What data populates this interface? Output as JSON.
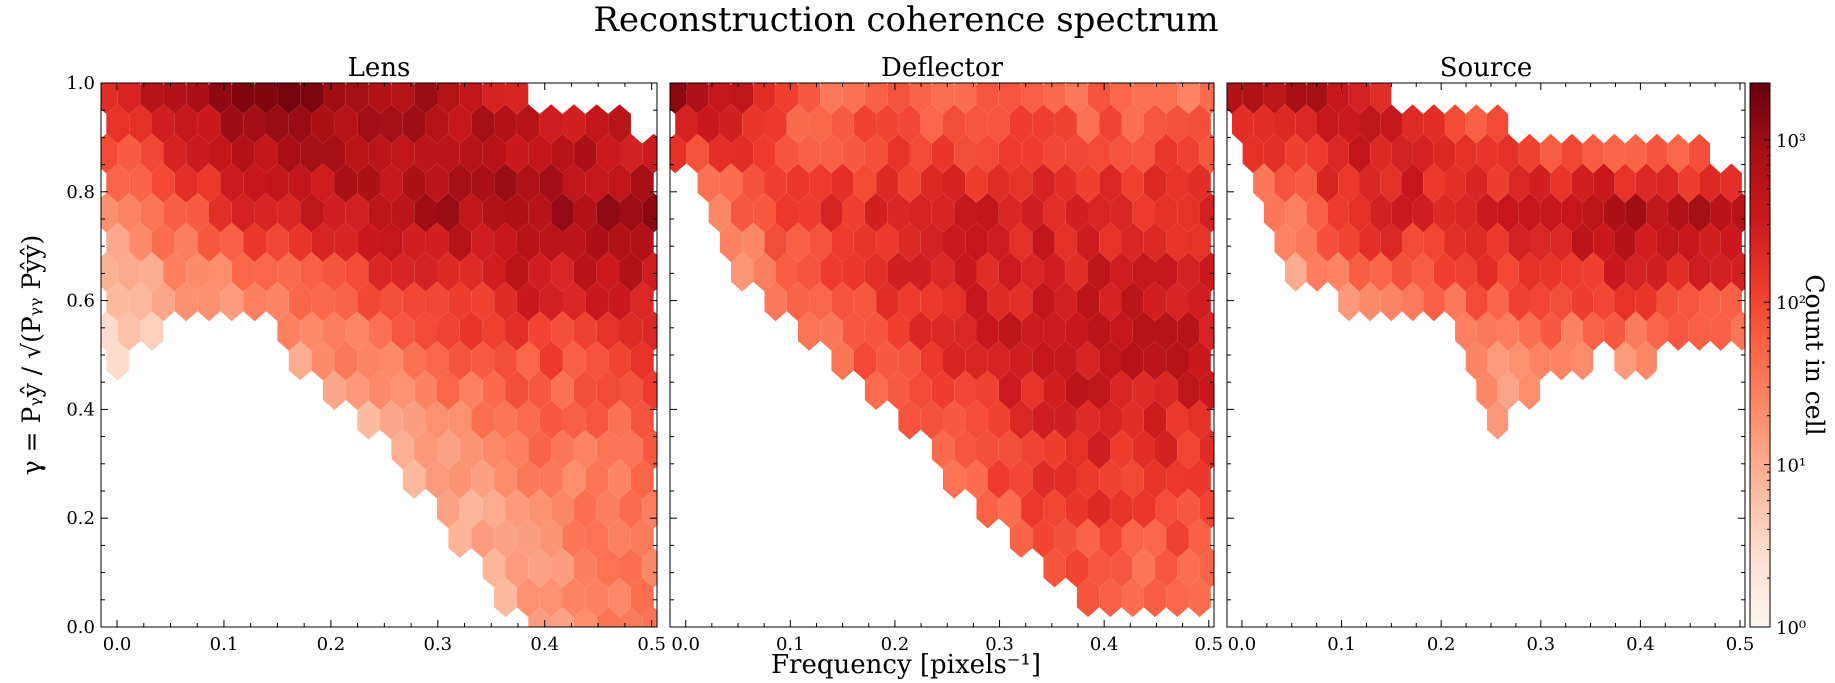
{
  "title": "Reconstruction coherence spectrum",
  "xlabel": "Frequency [pixels⁻¹]",
  "ylabel": "γ = Pᵧŷ / √(Pᵧᵧ Pŷŷ)",
  "colorbar_label": "Count in cell",
  "colorbar_ticks": [
    {
      "value": 1,
      "label": "10⁰"
    },
    {
      "value": 10,
      "label": "10¹"
    },
    {
      "value": 100,
      "label": "10²"
    },
    {
      "value": 1000,
      "label": "10³"
    }
  ],
  "colormap": [
    "#fff5f0",
    "#fee0d2",
    "#fcbba1",
    "#fc9272",
    "#fb6a4a",
    "#ef3b2c",
    "#cb181d",
    "#a50f15",
    "#67000d"
  ],
  "chart_data": [
    {
      "type": "heatmap",
      "title": "Lens",
      "scale": "log",
      "xlim": [
        -0.015,
        0.505
      ],
      "ylim": [
        0,
        1
      ],
      "xticks": [
        0.0,
        0.1,
        0.2,
        0.3,
        0.4,
        0.5
      ],
      "yticks": [
        0.0,
        0.2,
        0.4,
        0.6,
        0.8,
        1.0
      ],
      "bounds": [
        [
          0.0,
          0.48,
          1.0
        ],
        [
          0.05,
          0.58,
          1.0
        ],
        [
          0.1,
          0.62,
          1.0
        ],
        [
          0.15,
          0.56,
          1.0
        ],
        [
          0.2,
          0.44,
          1.0
        ],
        [
          0.25,
          0.34,
          1.0
        ],
        [
          0.3,
          0.24,
          1.0
        ],
        [
          0.35,
          0.08,
          0.98
        ],
        [
          0.4,
          0.0,
          0.96
        ],
        [
          0.45,
          0.0,
          0.93
        ],
        [
          0.5,
          0.0,
          0.88
        ]
      ],
      "count_grid": {
        "x": [
          0.0,
          0.125,
          0.25,
          0.375,
          0.5
        ],
        "y": [
          0.0,
          0.25,
          0.5,
          0.75,
          1.0
        ],
        "log10_counts": [
          [
            0.1,
            0.2,
            0.4,
            1.0,
            1.5
          ],
          [
            0.0,
            0.2,
            0.7,
            1.3,
            1.6
          ],
          [
            0.4,
            0.9,
            1.5,
            1.9,
            2.1
          ],
          [
            1.3,
            2.2,
            2.7,
            2.9,
            2.9
          ],
          [
            2.4,
            3.3,
            3.0,
            2.5,
            2.3
          ]
        ]
      }
    },
    {
      "type": "heatmap",
      "title": "Deflector",
      "scale": "log",
      "xlim": [
        -0.015,
        0.505
      ],
      "ylim": [
        0,
        1
      ],
      "xticks": [
        0.0,
        0.1,
        0.2,
        0.3,
        0.4,
        0.5
      ],
      "yticks": [
        0.0,
        0.2,
        0.4,
        0.6,
        0.8,
        1.0
      ],
      "bounds": [
        [
          0.0,
          0.84,
          1.0
        ],
        [
          0.05,
          0.68,
          1.0
        ],
        [
          0.1,
          0.56,
          1.0
        ],
        [
          0.15,
          0.48,
          1.0
        ],
        [
          0.2,
          0.4,
          1.0
        ],
        [
          0.25,
          0.3,
          1.0
        ],
        [
          0.3,
          0.2,
          1.0
        ],
        [
          0.35,
          0.1,
          1.0
        ],
        [
          0.4,
          0.06,
          1.0
        ],
        [
          0.45,
          0.04,
          1.0
        ],
        [
          0.5,
          0.04,
          1.0
        ]
      ],
      "count_grid": {
        "x": [
          0.0,
          0.125,
          0.25,
          0.375,
          0.5
        ],
        "y": [
          0.0,
          0.25,
          0.5,
          0.75,
          1.0
        ],
        "log10_counts": [
          [
            0.2,
            0.5,
            1.0,
            1.5,
            1.4
          ],
          [
            0.4,
            1.0,
            1.7,
            2.2,
            2.0
          ],
          [
            0.6,
            1.5,
            2.3,
            2.6,
            2.6
          ],
          [
            1.1,
            2.2,
            2.5,
            2.4,
            2.3
          ],
          [
            3.2,
            1.6,
            1.6,
            1.6,
            1.5
          ]
        ]
      }
    },
    {
      "type": "heatmap",
      "title": "Source",
      "scale": "log",
      "xlim": [
        -0.015,
        0.505
      ],
      "ylim": [
        0,
        1
      ],
      "xticks": [
        0.0,
        0.1,
        0.2,
        0.3,
        0.4,
        0.5
      ],
      "yticks": [
        0.0,
        0.2,
        0.4,
        0.6,
        0.8,
        1.0
      ],
      "bounds": [
        [
          0.0,
          0.9,
          1.0
        ],
        [
          0.05,
          0.66,
          1.0
        ],
        [
          0.1,
          0.62,
          0.98
        ],
        [
          0.15,
          0.6,
          0.96
        ],
        [
          0.2,
          0.58,
          0.94
        ],
        [
          0.25,
          0.38,
          0.92
        ],
        [
          0.3,
          0.44,
          0.9
        ],
        [
          0.35,
          0.52,
          0.88
        ],
        [
          0.4,
          0.5,
          0.88
        ],
        [
          0.45,
          0.53,
          0.86
        ],
        [
          0.5,
          0.56,
          0.84
        ]
      ],
      "count_grid": {
        "x": [
          0.0,
          0.125,
          0.25,
          0.375,
          0.5
        ],
        "y": [
          0.0,
          0.25,
          0.5,
          0.75,
          1.0
        ],
        "log10_counts": [
          [
            0.0,
            0.0,
            0.0,
            0.0,
            0.0
          ],
          [
            0.0,
            0.0,
            0.6,
            0.3,
            0.3
          ],
          [
            0.3,
            0.7,
            1.4,
            1.4,
            1.4
          ],
          [
            1.0,
            2.4,
            2.5,
            2.9,
            2.8
          ],
          [
            3.1,
            2.6,
            1.6,
            0.9,
            0.6
          ]
        ]
      }
    }
  ]
}
